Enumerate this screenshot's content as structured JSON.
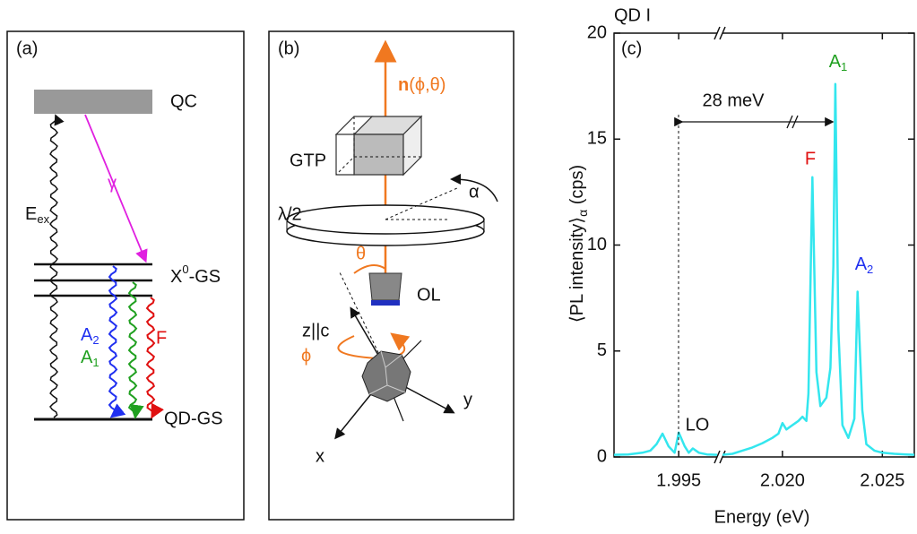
{
  "panels": {
    "a": {
      "label": "(a)",
      "qc": "QC",
      "gamma": "γ",
      "eex": {
        "text": "E",
        "sub": "ex"
      },
      "x0gs": {
        "text": "X",
        "sup": "0",
        "rest": "-GS"
      },
      "a2": {
        "text": "A",
        "sub": "2"
      },
      "a1": {
        "text": "A",
        "sub": "1"
      },
      "f": "F",
      "qdgs": "QD-GS"
    },
    "b": {
      "label": "(b)",
      "n": "n",
      "n_args": "(ϕ,θ)",
      "gtp": "GTP",
      "alpha": "α",
      "halfwave": "λ/2",
      "theta": "θ",
      "ol": "OL",
      "z": "z||c",
      "phi": "ϕ",
      "x": "x",
      "y": "y"
    }
  },
  "chart_data": {
    "type": "line",
    "title": "QD I",
    "panel_label": "(c)",
    "color": "#33e6ee",
    "xlabel": "Energy (eV)",
    "ylabel": {
      "text": "⟨PL intensity⟩",
      "sub": "α",
      "unit": " (cps)"
    },
    "xlim": [
      [
        1.9918,
        1.9969
      ],
      [
        2.017,
        2.0266
      ]
    ],
    "xticks": [
      1.995,
      {
        "value": 2.02,
        "label": "2.020"
      },
      2.025
    ],
    "ylim": [
      0,
      20
    ],
    "yticks": [
      0,
      5,
      10,
      15,
      20
    ],
    "x": [
      1.9918,
      1.9925,
      1.9932,
      1.9936,
      1.9939,
      1.9942,
      1.9945,
      1.9948,
      1.995,
      1.9953,
      1.9955,
      1.9957,
      1.996,
      1.9964,
      1.9969,
      2.017,
      2.0175,
      2.018,
      2.0185,
      2.019,
      2.0195,
      2.0198,
      2.02,
      2.0202,
      2.0205,
      2.0208,
      2.021,
      2.0212,
      2.0213,
      2.0215,
      2.0217,
      2.0219,
      2.0222,
      2.0224,
      2.02255,
      2.02265,
      2.0228,
      2.023,
      2.0233,
      2.0236,
      2.02376,
      2.024,
      2.0242,
      2.0246,
      2.025,
      2.0256,
      2.0262,
      2.0266
    ],
    "values": [
      0.1,
      0.12,
      0.2,
      0.3,
      0.6,
      1.1,
      0.5,
      0.2,
      1.15,
      0.5,
      0.2,
      0.4,
      0.2,
      0.12,
      0.1,
      0.1,
      0.15,
      0.3,
      0.45,
      0.65,
      0.9,
      1.1,
      1.6,
      1.3,
      1.5,
      1.7,
      1.9,
      1.7,
      3,
      13.2,
      4,
      2.4,
      2.8,
      4.2,
      9,
      17.6,
      6,
      1.5,
      0.9,
      1.8,
      7.8,
      2.2,
      0.6,
      0.3,
      0.2,
      0.15,
      0.12,
      0.1
    ],
    "annotations": {
      "spacing": "28 meV",
      "lo": "LO",
      "f": "F",
      "a1": {
        "text": "A",
        "sub": "1"
      },
      "a2": {
        "text": "A",
        "sub": "2"
      }
    }
  }
}
